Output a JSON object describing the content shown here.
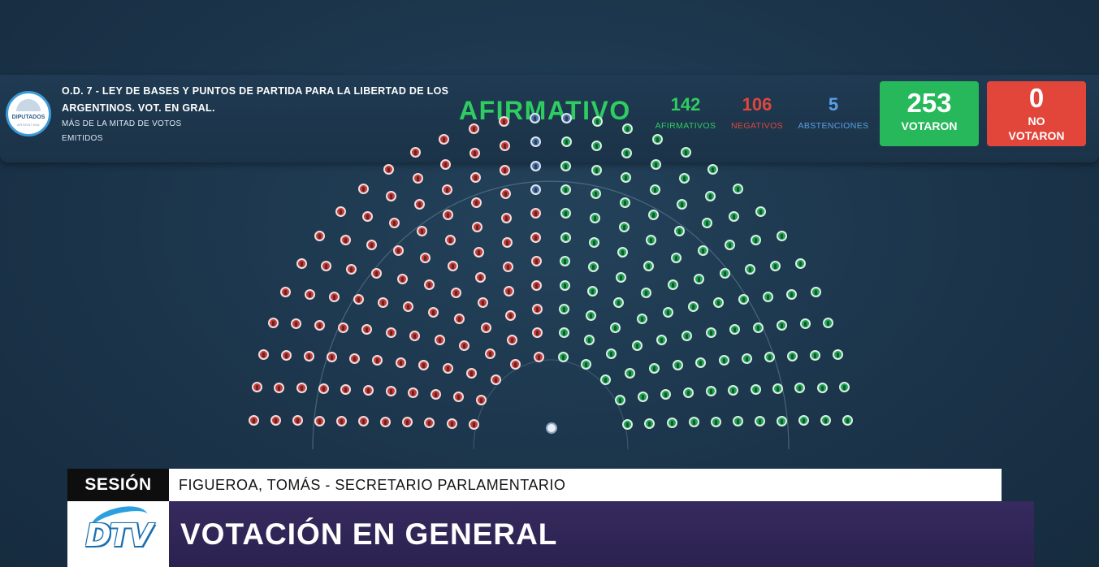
{
  "header": {
    "logo_text": "DIPUTADOS",
    "logo_sub": "ARGENTINA",
    "motion_title": "O.D. 7 - LEY DE BASES Y PUNTOS DE PARTIDA PARA LA LIBERTAD DE LOS ARGENTINOS. VOT. EN GRAL.",
    "majority_note": "MÁS DE LA MITAD DE VOTOS EMITIDOS",
    "result": "AFIRMATIVO",
    "afirmativos": {
      "value": "142",
      "label": "AFIRMATIVOS",
      "color": "#2fcc61"
    },
    "negativos": {
      "value": "106",
      "label": "NEGATIVOS",
      "color": "#e0463d"
    },
    "abstenciones": {
      "value": "5",
      "label": "ABSTENCIONES",
      "color": "#5aa0e6"
    },
    "votaron": {
      "value": "253",
      "label": "VOTARON",
      "color": "#26b85a"
    },
    "no_votaron": {
      "value": "0",
      "label": "NO VOTARON",
      "color": "#e2453a"
    }
  },
  "hemicycle": {
    "totals": {
      "afirmativos": 142,
      "negativos": 106,
      "abstenciones": 5
    },
    "colors": {
      "afirmativo": "#1ea356",
      "negativo": "#c43a3a",
      "abstencion": "#4b73a8",
      "empty": "#6f7f8c"
    }
  },
  "lower_third": {
    "session_label": "SESIÓN",
    "speaker": "FIGUEROA, TOMÁS - SECRETARIO PARLAMENTARIO",
    "channel_logo": "DTV",
    "title": "VOTACIÓN EN GENERAL"
  }
}
